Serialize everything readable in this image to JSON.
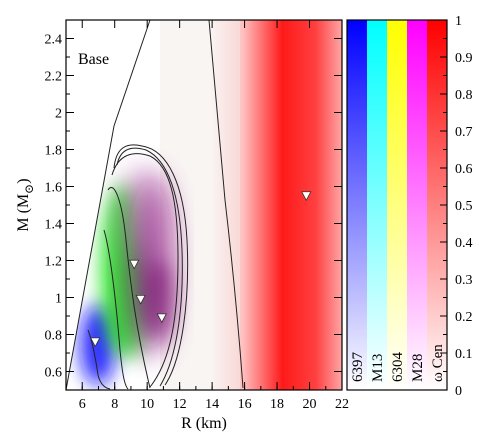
{
  "chart_data": {
    "type": "heatmap",
    "title": "",
    "panel_label": "Base",
    "xlabel": "R (km)",
    "ylabel_main": "M (M",
    "ylabel_sub": "⊙",
    "ylabel_close": ")",
    "xlim": [
      5,
      22
    ],
    "ylim": [
      0.5,
      2.5
    ],
    "x_ticks": [
      "6",
      "8",
      "10",
      "12",
      "14",
      "16",
      "18",
      "20",
      "22"
    ],
    "y_ticks": [
      "0.6",
      "0.8",
      "1",
      "1.2",
      "1.4",
      "1.6",
      "1.8",
      "2",
      "2.2",
      "2.4"
    ],
    "colorbar": {
      "range": [
        0,
        1
      ],
      "ticks": [
        "0",
        "0.1",
        "0.2",
        "0.3",
        "0.4",
        "0.5",
        "0.6",
        "0.7",
        "0.8",
        "0.9",
        "1"
      ],
      "series": [
        {
          "name": "6397",
          "color": "#0000ff"
        },
        {
          "name": "M13",
          "color": "#00ffff"
        },
        {
          "name": "6304",
          "color": "#ffff00"
        },
        {
          "name": "M28",
          "color": "#ff00ff"
        },
        {
          "name": "ω Cen",
          "color": "#ff0000"
        }
      ]
    },
    "series": [
      {
        "name": "6397",
        "color": "#0000ff",
        "peak": {
          "x": 6.8,
          "y": 0.76
        }
      },
      {
        "name": "M13",
        "color": "#00ffff",
        "peak": {
          "x": 9.2,
          "y": 1.18
        }
      },
      {
        "name": "6304",
        "color": "#ffff00",
        "peak": {
          "x": 9.6,
          "y": 0.99
        }
      },
      {
        "name": "M28",
        "color": "#ff00ff",
        "peak": {
          "x": 10.9,
          "y": 0.89
        }
      },
      {
        "name": "ω Cen",
        "color": "#ff0000",
        "peak": {
          "x": 19.8,
          "y": 1.55
        }
      }
    ]
  }
}
